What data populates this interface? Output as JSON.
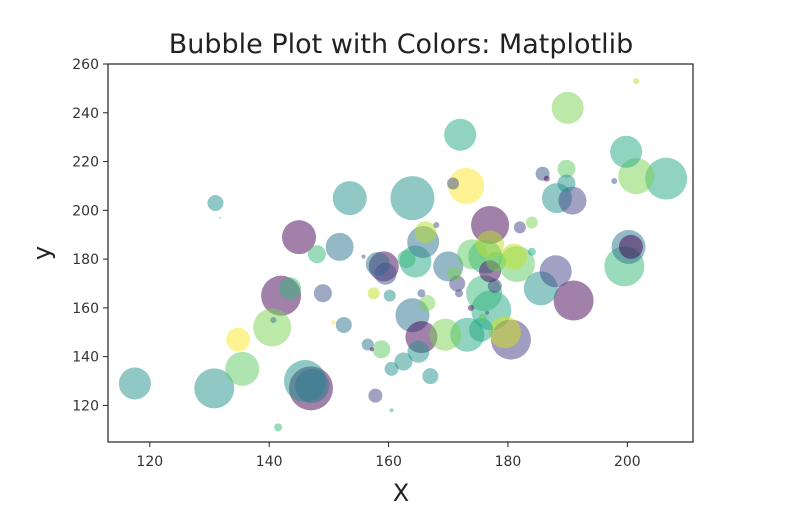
{
  "chart_data": {
    "type": "scatter",
    "title": "Bubble Plot with Colors: Matplotlib",
    "xlabel": "X",
    "ylabel": "y",
    "xlim": [
      113,
      211
    ],
    "ylim": [
      105,
      260
    ],
    "xticks": [
      120,
      140,
      160,
      180,
      200
    ],
    "yticks": [
      120,
      140,
      160,
      180,
      200,
      220,
      240,
      260
    ],
    "grid": false,
    "colormap": "viridis",
    "alpha": 0.5,
    "points": [
      {
        "x": 117.5,
        "y": 129,
        "r": 16,
        "color": "#21918c"
      },
      {
        "x": 130.8,
        "y": 127,
        "r": 20,
        "color": "#21918c"
      },
      {
        "x": 131,
        "y": 203,
        "r": 8,
        "color": "#21918c"
      },
      {
        "x": 131.8,
        "y": 197,
        "r": 1,
        "color": "#5ec962"
      },
      {
        "x": 134.8,
        "y": 147,
        "r": 12,
        "color": "#fde725"
      },
      {
        "x": 135.5,
        "y": 135,
        "r": 17,
        "color": "#5ec962"
      },
      {
        "x": 140.5,
        "y": 152,
        "r": 19,
        "color": "#7ad151"
      },
      {
        "x": 140.7,
        "y": 155,
        "r": 3,
        "color": "#2c728e"
      },
      {
        "x": 141.5,
        "y": 111,
        "r": 4,
        "color": "#35b779"
      },
      {
        "x": 142,
        "y": 165,
        "r": 20,
        "color": "#440154"
      },
      {
        "x": 143.5,
        "y": 168,
        "r": 11,
        "color": "#35b779"
      },
      {
        "x": 145,
        "y": 189,
        "r": 17,
        "color": "#440154"
      },
      {
        "x": 146,
        "y": 130,
        "r": 21,
        "color": "#21918c"
      },
      {
        "x": 147,
        "y": 127,
        "r": 22,
        "color": "#440154"
      },
      {
        "x": 147.2,
        "y": 128,
        "r": 17,
        "color": "#2a788e"
      },
      {
        "x": 148,
        "y": 182,
        "r": 9,
        "color": "#35b779"
      },
      {
        "x": 149,
        "y": 166,
        "r": 9,
        "color": "#3b528b"
      },
      {
        "x": 150.8,
        "y": 154,
        "r": 2,
        "color": "#fde725"
      },
      {
        "x": 151.8,
        "y": 185,
        "r": 14,
        "color": "#2c728e"
      },
      {
        "x": 152.5,
        "y": 153,
        "r": 8,
        "color": "#2c728e"
      },
      {
        "x": 153.5,
        "y": 205,
        "r": 17,
        "color": "#21918c"
      },
      {
        "x": 155.8,
        "y": 181,
        "r": 2,
        "color": "#3b528b"
      },
      {
        "x": 156.5,
        "y": 145,
        "r": 6,
        "color": "#2c728e"
      },
      {
        "x": 157.2,
        "y": 143,
        "r": 2,
        "color": "#440154"
      },
      {
        "x": 157.5,
        "y": 166,
        "r": 6,
        "color": "#bddf26"
      },
      {
        "x": 157.8,
        "y": 124,
        "r": 7,
        "color": "#414487"
      },
      {
        "x": 158.2,
        "y": 178,
        "r": 12,
        "color": "#2c728e"
      },
      {
        "x": 158.8,
        "y": 143,
        "r": 9,
        "color": "#5ec962"
      },
      {
        "x": 159.2,
        "y": 177,
        "r": 15,
        "color": "#440154"
      },
      {
        "x": 159.5,
        "y": 174,
        "r": 11,
        "color": "#3b528b"
      },
      {
        "x": 160.2,
        "y": 165,
        "r": 6,
        "color": "#21918c"
      },
      {
        "x": 160.5,
        "y": 135,
        "r": 7,
        "color": "#21918c"
      },
      {
        "x": 160.5,
        "y": 118,
        "r": 2,
        "color": "#35b779"
      },
      {
        "x": 162.5,
        "y": 138,
        "r": 9,
        "color": "#21918c"
      },
      {
        "x": 163,
        "y": 180,
        "r": 9,
        "color": "#35b779"
      },
      {
        "x": 164,
        "y": 205,
        "r": 22,
        "color": "#21918c"
      },
      {
        "x": 164,
        "y": 157,
        "r": 17,
        "color": "#2c728e"
      },
      {
        "x": 164.5,
        "y": 179,
        "r": 16,
        "color": "#22a884"
      },
      {
        "x": 165,
        "y": 142,
        "r": 11,
        "color": "#21918c"
      },
      {
        "x": 165.5,
        "y": 148,
        "r": 16,
        "color": "#440154"
      },
      {
        "x": 165.5,
        "y": 166,
        "r": 4,
        "color": "#3b528b"
      },
      {
        "x": 165.8,
        "y": 187,
        "r": 16,
        "color": "#2c728e"
      },
      {
        "x": 166.2,
        "y": 191,
        "r": 11,
        "color": "#b5de2b"
      },
      {
        "x": 166.5,
        "y": 162,
        "r": 8,
        "color": "#7ad151"
      },
      {
        "x": 167,
        "y": 132,
        "r": 8,
        "color": "#21918c"
      },
      {
        "x": 168,
        "y": 194,
        "r": 3,
        "color": "#3b528b"
      },
      {
        "x": 169.5,
        "y": 149,
        "r": 16,
        "color": "#7ad151"
      },
      {
        "x": 170,
        "y": 177,
        "r": 15,
        "color": "#2c728e"
      },
      {
        "x": 170.8,
        "y": 211,
        "r": 6,
        "color": "#3b528b"
      },
      {
        "x": 171,
        "y": 174,
        "r": 7,
        "color": "#7ad151"
      },
      {
        "x": 171.5,
        "y": 170,
        "r": 8,
        "color": "#414487"
      },
      {
        "x": 171.8,
        "y": 166,
        "r": 4,
        "color": "#414487"
      },
      {
        "x": 172,
        "y": 231,
        "r": 16,
        "color": "#22a884"
      },
      {
        "x": 173,
        "y": 210,
        "r": 18,
        "color": "#fde725"
      },
      {
        "x": 173.2,
        "y": 149,
        "r": 17,
        "color": "#22a884"
      },
      {
        "x": 173.8,
        "y": 160,
        "r": 3,
        "color": "#440154"
      },
      {
        "x": 174,
        "y": 182,
        "r": 15,
        "color": "#5ec962"
      },
      {
        "x": 175.5,
        "y": 151,
        "r": 12,
        "color": "#22a884"
      },
      {
        "x": 175.8,
        "y": 156,
        "r": 4,
        "color": "#5ec962"
      },
      {
        "x": 176,
        "y": 166,
        "r": 18,
        "color": "#35b779"
      },
      {
        "x": 176.2,
        "y": 181,
        "r": 17,
        "color": "#22a884"
      },
      {
        "x": 176.5,
        "y": 158,
        "r": 2,
        "color": "#414487"
      },
      {
        "x": 177,
        "y": 186,
        "r": 14,
        "color": "#bddf26"
      },
      {
        "x": 177,
        "y": 194,
        "r": 19,
        "color": "#440154"
      },
      {
        "x": 177,
        "y": 175,
        "r": 11,
        "color": "#440154"
      },
      {
        "x": 177.2,
        "y": 159,
        "r": 20,
        "color": "#22a884"
      },
      {
        "x": 177.8,
        "y": 169,
        "r": 7,
        "color": "#414487"
      },
      {
        "x": 178,
        "y": 179,
        "r": 10,
        "color": "#7ad151"
      },
      {
        "x": 179.5,
        "y": 150,
        "r": 16,
        "color": "#d4e21a"
      },
      {
        "x": 180.5,
        "y": 147,
        "r": 20,
        "color": "#443a83"
      },
      {
        "x": 181,
        "y": 181,
        "r": 13,
        "color": "#bddf26"
      },
      {
        "x": 181.5,
        "y": 178,
        "r": 18,
        "color": "#5ec962"
      },
      {
        "x": 182,
        "y": 193,
        "r": 6,
        "color": "#414487"
      },
      {
        "x": 184,
        "y": 183,
        "r": 4,
        "color": "#22a884"
      },
      {
        "x": 184,
        "y": 195,
        "r": 6,
        "color": "#7ad151"
      },
      {
        "x": 185.5,
        "y": 168,
        "r": 17,
        "color": "#21918c"
      },
      {
        "x": 185.8,
        "y": 215,
        "r": 7,
        "color": "#3b528b"
      },
      {
        "x": 186.5,
        "y": 213,
        "r": 3,
        "color": "#440154"
      },
      {
        "x": 188,
        "y": 175,
        "r": 16,
        "color": "#414487"
      },
      {
        "x": 188.2,
        "y": 205,
        "r": 15,
        "color": "#21918c"
      },
      {
        "x": 189.8,
        "y": 217,
        "r": 9,
        "color": "#5ec962"
      },
      {
        "x": 189.8,
        "y": 211,
        "r": 9,
        "color": "#21918c"
      },
      {
        "x": 190,
        "y": 242,
        "r": 16,
        "color": "#7ad151"
      },
      {
        "x": 190.8,
        "y": 204,
        "r": 14,
        "color": "#414487"
      },
      {
        "x": 191,
        "y": 163,
        "r": 20,
        "color": "#440154"
      },
      {
        "x": 197.8,
        "y": 212,
        "r": 3,
        "color": "#3b528b"
      },
      {
        "x": 199.5,
        "y": 177,
        "r": 20,
        "color": "#35b779"
      },
      {
        "x": 199.8,
        "y": 224,
        "r": 16,
        "color": "#22a884"
      },
      {
        "x": 200.2,
        "y": 185,
        "r": 17,
        "color": "#2c728e"
      },
      {
        "x": 200.6,
        "y": 185,
        "r": 12,
        "color": "#440154"
      },
      {
        "x": 201.5,
        "y": 214,
        "r": 18,
        "color": "#7ad151"
      },
      {
        "x": 201.5,
        "y": 253,
        "r": 3,
        "color": "#b5de2b"
      },
      {
        "x": 206.5,
        "y": 213,
        "r": 21,
        "color": "#22a884"
      }
    ]
  }
}
